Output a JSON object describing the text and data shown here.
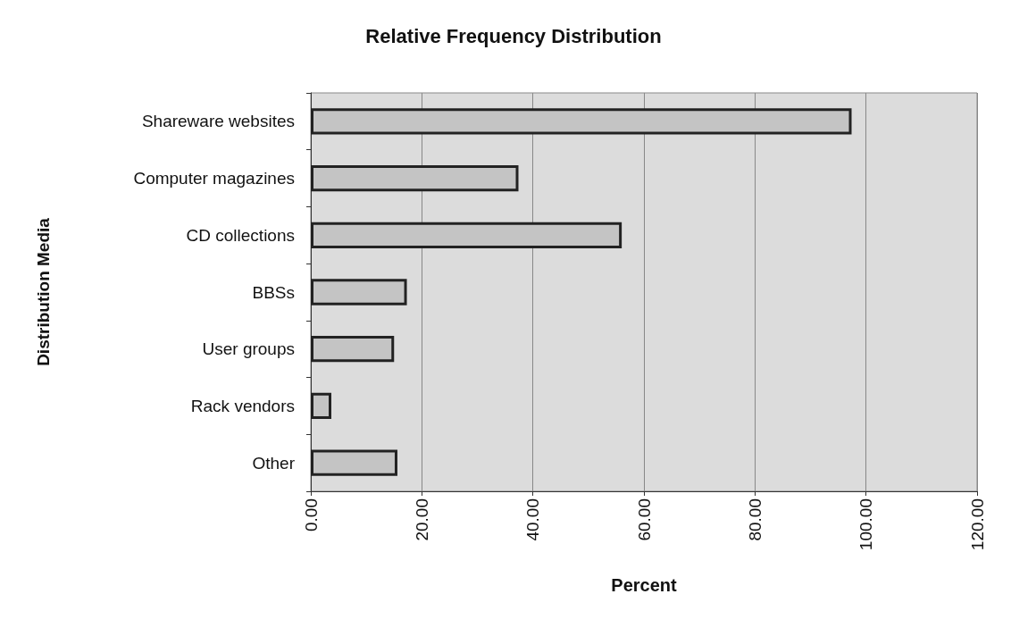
{
  "chart_data": {
    "type": "bar",
    "orientation": "horizontal",
    "title": "Relative Frequency Distribution",
    "xlabel": "Percent",
    "ylabel": "Distribution Media",
    "categories": [
      "Shareware websites",
      "Computer magazines",
      "CD collections",
      "BBSs",
      "User groups",
      "Rack vendors",
      "Other"
    ],
    "values": [
      97.4,
      37.4,
      56.0,
      17.3,
      15.0,
      3.7,
      15.6
    ],
    "color": "#c4c4c4",
    "xlim": [
      0,
      120
    ],
    "xticks": [
      {
        "value": 0,
        "label": "0.00"
      },
      {
        "value": 20,
        "label": "20.00"
      },
      {
        "value": 40,
        "label": "40.00"
      },
      {
        "value": 60,
        "label": "60.00"
      },
      {
        "value": 80,
        "label": "80.00"
      },
      {
        "value": 100,
        "label": "100.00"
      },
      {
        "value": 120,
        "label": "120.00"
      }
    ],
    "grid": "x"
  }
}
